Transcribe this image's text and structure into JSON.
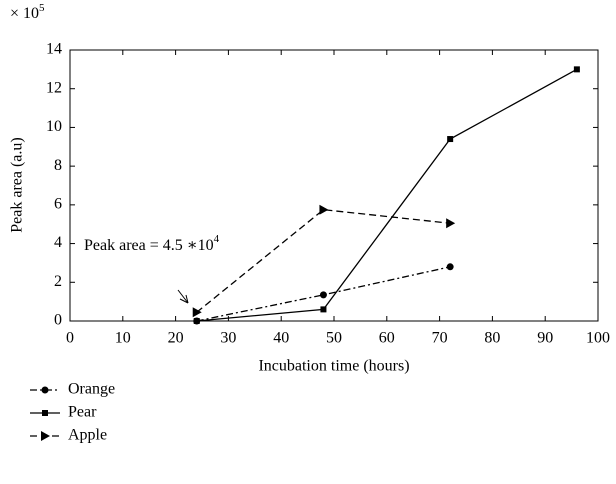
{
  "chart_data": {
    "type": "line",
    "y_scale": {
      "base": "× 10",
      "exponent": "5"
    },
    "xlabel": "Incubation time (hours)",
    "ylabel": "Peak area (a.u)",
    "annotation": {
      "text": "Peak area = 4.5 ∗10",
      "exponent": "4"
    },
    "xlim": [
      0,
      100
    ],
    "xticks": [
      0,
      10,
      20,
      30,
      40,
      50,
      60,
      70,
      80,
      90,
      100
    ],
    "ylim": [
      0,
      14
    ],
    "yticks": [
      0,
      2,
      4,
      6,
      8,
      10,
      12,
      14
    ],
    "legend": "bottom-left",
    "series": [
      {
        "name": "Orange",
        "color": "#000000",
        "style": "dashdot",
        "marker": "circle",
        "x": [
          24,
          48,
          72
        ],
        "values": [
          0,
          1.35,
          2.8
        ]
      },
      {
        "name": "Pear",
        "color": "#000000",
        "style": "solid",
        "marker": "square",
        "x": [
          24,
          48,
          72,
          96
        ],
        "values": [
          0,
          0.6,
          9.4,
          13
        ]
      },
      {
        "name": "Apple",
        "color": "#000000",
        "style": "dashed",
        "marker": "triangle",
        "x": [
          24,
          48,
          72
        ],
        "values": [
          0.45,
          5.75,
          5.05
        ]
      }
    ]
  }
}
